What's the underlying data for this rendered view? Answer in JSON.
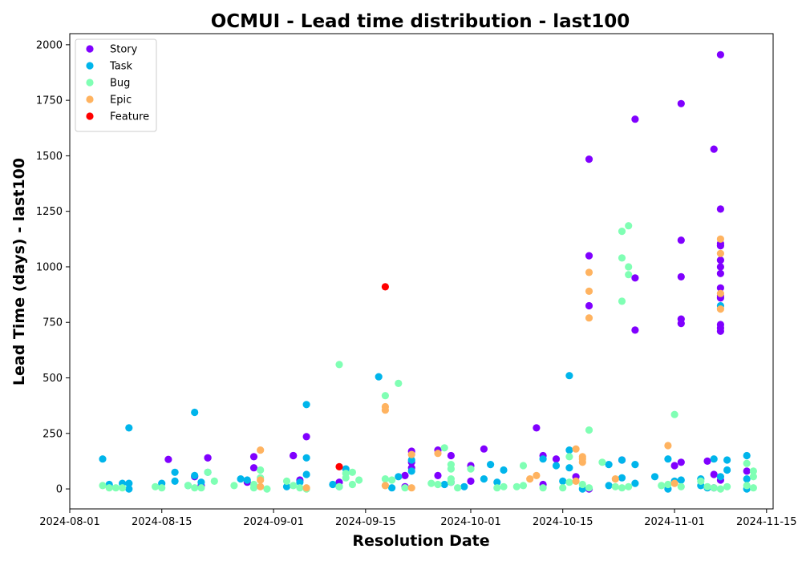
{
  "chart_data": {
    "type": "scatter",
    "title": "OCMUI - Lead time distribution - last100",
    "xlabel": "Resolution Date",
    "ylabel": "Lead Time (days) - last100",
    "xlim": [
      "2024-08-01",
      "2024-11-16"
    ],
    "ylim": [
      -90,
      2050
    ],
    "x_ticks": [
      "2024-08-01",
      "2024-08-15",
      "2024-09-01",
      "2024-09-15",
      "2024-10-01",
      "2024-10-15",
      "2024-11-01",
      "2024-11-15"
    ],
    "y_ticks": [
      0,
      250,
      500,
      750,
      1000,
      1250,
      1500,
      1750,
      2000
    ],
    "legend_position": "top-left",
    "series": [
      {
        "name": "Story",
        "color": "#8000ff",
        "points": [
          [
            "2024-08-16",
            133
          ],
          [
            "2024-08-20",
            55
          ],
          [
            "2024-08-21",
            15
          ],
          [
            "2024-08-22",
            140
          ],
          [
            "2024-08-22",
            140
          ],
          [
            "2024-08-28",
            30
          ],
          [
            "2024-08-29",
            145
          ],
          [
            "2024-08-29",
            95
          ],
          [
            "2024-09-04",
            150
          ],
          [
            "2024-09-04",
            150
          ],
          [
            "2024-09-05",
            40
          ],
          [
            "2024-09-06",
            235
          ],
          [
            "2024-09-11",
            30
          ],
          [
            "2024-09-21",
            60
          ],
          [
            "2024-09-21",
            10
          ],
          [
            "2024-09-22",
            170
          ],
          [
            "2024-09-22",
            120
          ],
          [
            "2024-09-22",
            95
          ],
          [
            "2024-09-26",
            175
          ],
          [
            "2024-09-26",
            60
          ],
          [
            "2024-09-28",
            150
          ],
          [
            "2024-09-28",
            30
          ],
          [
            "2024-10-01",
            105
          ],
          [
            "2024-10-01",
            35
          ],
          [
            "2024-10-03",
            180
          ],
          [
            "2024-10-11",
            275
          ],
          [
            "2024-10-12",
            150
          ],
          [
            "2024-10-12",
            20
          ],
          [
            "2024-10-14",
            135
          ],
          [
            "2024-10-17",
            55
          ],
          [
            "2024-10-19",
            1485
          ],
          [
            "2024-10-19",
            1050
          ],
          [
            "2024-10-19",
            825
          ],
          [
            "2024-10-19",
            0
          ],
          [
            "2024-10-24",
            130
          ],
          [
            "2024-10-26",
            1665
          ],
          [
            "2024-10-26",
            950
          ],
          [
            "2024-10-26",
            715
          ],
          [
            "2024-11-01",
            105
          ],
          [
            "2024-11-02",
            1735
          ],
          [
            "2024-11-02",
            1120
          ],
          [
            "2024-11-02",
            955
          ],
          [
            "2024-11-02",
            765
          ],
          [
            "2024-11-02",
            745
          ],
          [
            "2024-11-02",
            120
          ],
          [
            "2024-11-06",
            125
          ],
          [
            "2024-11-07",
            1530
          ],
          [
            "2024-11-07",
            65
          ],
          [
            "2024-11-07",
            5
          ],
          [
            "2024-11-08",
            1955
          ],
          [
            "2024-11-08",
            1260
          ],
          [
            "2024-11-08",
            1105
          ],
          [
            "2024-11-08",
            1095
          ],
          [
            "2024-11-08",
            1030
          ],
          [
            "2024-11-08",
            1000
          ],
          [
            "2024-11-08",
            970
          ],
          [
            "2024-11-08",
            905
          ],
          [
            "2024-11-08",
            870
          ],
          [
            "2024-11-08",
            860
          ],
          [
            "2024-11-08",
            740
          ],
          [
            "2024-11-08",
            725
          ],
          [
            "2024-11-08",
            710
          ],
          [
            "2024-11-08",
            40
          ],
          [
            "2024-11-12",
            80
          ]
        ]
      },
      {
        "name": "Task",
        "color": "#00b5eb",
        "points": [
          [
            "2024-08-06",
            135
          ],
          [
            "2024-08-07",
            20
          ],
          [
            "2024-08-09",
            25
          ],
          [
            "2024-08-10",
            275
          ],
          [
            "2024-08-10",
            25
          ],
          [
            "2024-08-10",
            0
          ],
          [
            "2024-08-15",
            25
          ],
          [
            "2024-08-17",
            75
          ],
          [
            "2024-08-17",
            35
          ],
          [
            "2024-08-19",
            15
          ],
          [
            "2024-08-20",
            345
          ],
          [
            "2024-08-20",
            60
          ],
          [
            "2024-08-21",
            30
          ],
          [
            "2024-08-22",
            75
          ],
          [
            "2024-08-27",
            45
          ],
          [
            "2024-08-28",
            40
          ],
          [
            "2024-09-03",
            10
          ],
          [
            "2024-09-05",
            30
          ],
          [
            "2024-09-06",
            380
          ],
          [
            "2024-09-06",
            140
          ],
          [
            "2024-09-06",
            65
          ],
          [
            "2024-09-10",
            20
          ],
          [
            "2024-09-11",
            10
          ],
          [
            "2024-09-12",
            90
          ],
          [
            "2024-09-17",
            505
          ],
          [
            "2024-09-19",
            5
          ],
          [
            "2024-09-20",
            55
          ],
          [
            "2024-09-22",
            130
          ],
          [
            "2024-09-22",
            80
          ],
          [
            "2024-09-27",
            20
          ],
          [
            "2024-09-30",
            10
          ],
          [
            "2024-10-03",
            45
          ],
          [
            "2024-10-04",
            110
          ],
          [
            "2024-10-05",
            30
          ],
          [
            "2024-10-06",
            85
          ],
          [
            "2024-10-12",
            135
          ],
          [
            "2024-10-14",
            105
          ],
          [
            "2024-10-15",
            35
          ],
          [
            "2024-10-16",
            510
          ],
          [
            "2024-10-16",
            175
          ],
          [
            "2024-10-16",
            95
          ],
          [
            "2024-10-18",
            0
          ],
          [
            "2024-10-22",
            110
          ],
          [
            "2024-10-22",
            15
          ],
          [
            "2024-10-24",
            130
          ],
          [
            "2024-10-24",
            50
          ],
          [
            "2024-10-26",
            110
          ],
          [
            "2024-10-26",
            25
          ],
          [
            "2024-10-29",
            55
          ],
          [
            "2024-10-31",
            135
          ],
          [
            "2024-10-31",
            0
          ],
          [
            "2024-11-01",
            35
          ],
          [
            "2024-11-02",
            40
          ],
          [
            "2024-11-05",
            45
          ],
          [
            "2024-11-05",
            15
          ],
          [
            "2024-11-06",
            5
          ],
          [
            "2024-11-07",
            135
          ],
          [
            "2024-11-08",
            825
          ],
          [
            "2024-11-08",
            55
          ],
          [
            "2024-11-09",
            130
          ],
          [
            "2024-11-09",
            85
          ],
          [
            "2024-11-12",
            150
          ],
          [
            "2024-11-12",
            45
          ],
          [
            "2024-11-12",
            0
          ]
        ]
      },
      {
        "name": "Bug",
        "color": "#80ffb4",
        "points": [
          [
            "2024-08-06",
            15
          ],
          [
            "2024-08-07",
            5
          ],
          [
            "2024-08-08",
            5
          ],
          [
            "2024-08-09",
            5
          ],
          [
            "2024-08-14",
            10
          ],
          [
            "2024-08-15",
            5
          ],
          [
            "2024-08-19",
            15
          ],
          [
            "2024-08-20",
            5
          ],
          [
            "2024-08-21",
            5
          ],
          [
            "2024-08-22",
            75
          ],
          [
            "2024-08-23",
            35
          ],
          [
            "2024-08-26",
            15
          ],
          [
            "2024-08-29",
            20
          ],
          [
            "2024-08-29",
            5
          ],
          [
            "2024-08-30",
            50
          ],
          [
            "2024-08-30",
            85
          ],
          [
            "2024-08-31",
            0
          ],
          [
            "2024-09-03",
            35
          ],
          [
            "2024-09-04",
            15
          ],
          [
            "2024-09-05",
            5
          ],
          [
            "2024-09-06",
            0
          ],
          [
            "2024-09-11",
            560
          ],
          [
            "2024-09-11",
            10
          ],
          [
            "2024-09-12",
            70
          ],
          [
            "2024-09-12",
            50
          ],
          [
            "2024-09-13",
            75
          ],
          [
            "2024-09-13",
            20
          ],
          [
            "2024-09-14",
            40
          ],
          [
            "2024-09-18",
            420
          ],
          [
            "2024-09-18",
            45
          ],
          [
            "2024-09-18",
            15
          ],
          [
            "2024-09-19",
            40
          ],
          [
            "2024-09-20",
            475
          ],
          [
            "2024-09-21",
            5
          ],
          [
            "2024-09-25",
            25
          ],
          [
            "2024-09-26",
            20
          ],
          [
            "2024-09-27",
            185
          ],
          [
            "2024-09-28",
            110
          ],
          [
            "2024-09-28",
            90
          ],
          [
            "2024-09-28",
            45
          ],
          [
            "2024-09-28",
            30
          ],
          [
            "2024-09-29",
            5
          ],
          [
            "2024-10-01",
            90
          ],
          [
            "2024-10-05",
            5
          ],
          [
            "2024-10-06",
            10
          ],
          [
            "2024-10-08",
            10
          ],
          [
            "2024-10-09",
            105
          ],
          [
            "2024-10-09",
            15
          ],
          [
            "2024-10-12",
            5
          ],
          [
            "2024-10-15",
            5
          ],
          [
            "2024-10-16",
            145
          ],
          [
            "2024-10-16",
            30
          ],
          [
            "2024-10-18",
            20
          ],
          [
            "2024-10-19",
            265
          ],
          [
            "2024-10-19",
            5
          ],
          [
            "2024-10-21",
            120
          ],
          [
            "2024-10-23",
            10
          ],
          [
            "2024-10-24",
            1160
          ],
          [
            "2024-10-24",
            1040
          ],
          [
            "2024-10-24",
            845
          ],
          [
            "2024-10-24",
            5
          ],
          [
            "2024-10-25",
            1185
          ],
          [
            "2024-10-25",
            1000
          ],
          [
            "2024-10-25",
            965
          ],
          [
            "2024-10-25",
            10
          ],
          [
            "2024-10-30",
            15
          ],
          [
            "2024-10-31",
            20
          ],
          [
            "2024-11-01",
            335
          ],
          [
            "2024-11-02",
            10
          ],
          [
            "2024-11-05",
            35
          ],
          [
            "2024-11-06",
            10
          ],
          [
            "2024-11-07",
            5
          ],
          [
            "2024-11-08",
            0
          ],
          [
            "2024-11-09",
            10
          ],
          [
            "2024-11-12",
            115
          ],
          [
            "2024-11-12",
            15
          ],
          [
            "2024-11-13",
            80
          ],
          [
            "2024-11-13",
            55
          ],
          [
            "2024-11-13",
            5
          ]
        ]
      },
      {
        "name": "Epic",
        "color": "#ffb360",
        "points": [
          [
            "2024-08-30",
            175
          ],
          [
            "2024-08-30",
            40
          ],
          [
            "2024-08-30",
            10
          ],
          [
            "2024-09-06",
            5
          ],
          [
            "2024-09-18",
            370
          ],
          [
            "2024-09-18",
            355
          ],
          [
            "2024-09-18",
            15
          ],
          [
            "2024-09-22",
            155
          ],
          [
            "2024-09-22",
            5
          ],
          [
            "2024-09-26",
            160
          ],
          [
            "2024-10-10",
            45
          ],
          [
            "2024-10-11",
            60
          ],
          [
            "2024-10-17",
            180
          ],
          [
            "2024-10-17",
            35
          ],
          [
            "2024-10-18",
            145
          ],
          [
            "2024-10-18",
            135
          ],
          [
            "2024-10-18",
            120
          ],
          [
            "2024-10-19",
            975
          ],
          [
            "2024-10-19",
            890
          ],
          [
            "2024-10-19",
            770
          ],
          [
            "2024-10-23",
            45
          ],
          [
            "2024-10-31",
            195
          ],
          [
            "2024-11-01",
            25
          ],
          [
            "2024-11-08",
            1125
          ],
          [
            "2024-11-08",
            1060
          ],
          [
            "2024-11-08",
            880
          ],
          [
            "2024-11-08",
            810
          ]
        ]
      },
      {
        "name": "Feature",
        "color": "#ff0000",
        "points": [
          [
            "2024-09-11",
            100
          ],
          [
            "2024-09-18",
            910
          ]
        ]
      }
    ]
  }
}
